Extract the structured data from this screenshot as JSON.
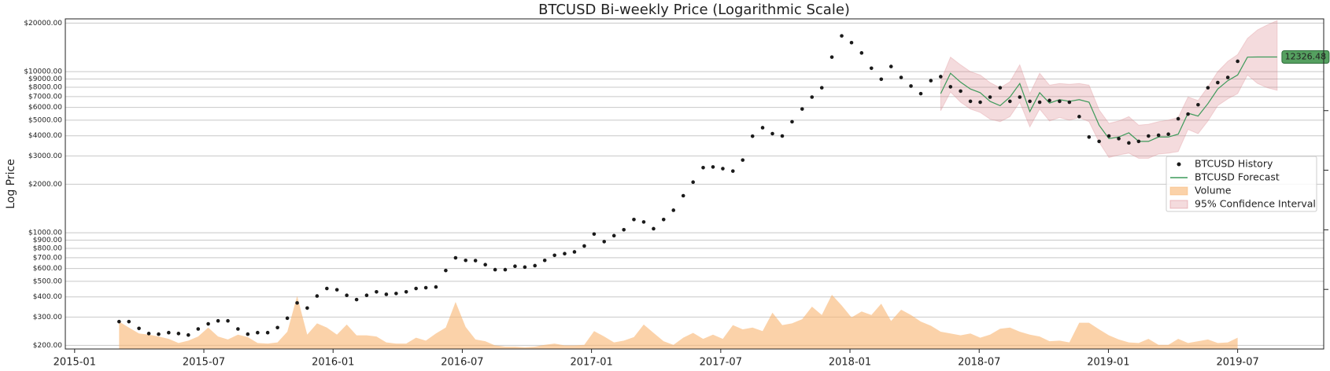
{
  "chart_data": {
    "type": "line",
    "title": "BTCUSD Bi-weekly Price (Logarithmic Scale)",
    "ylabel": "Log Price",
    "log_y": true,
    "grid": true,
    "legend": "center right",
    "xlim": [
      2014.964,
      2019.833
    ],
    "xticks": [
      {
        "value": 2015.0,
        "label": "2015-01"
      },
      {
        "value": 2015.5,
        "label": "2015-07"
      },
      {
        "value": 2016.0,
        "label": "2016-01"
      },
      {
        "value": 2016.5,
        "label": "2016-07"
      },
      {
        "value": 2017.0,
        "label": "2017-01"
      },
      {
        "value": 2017.5,
        "label": "2017-07"
      },
      {
        "value": 2018.0,
        "label": "2018-01"
      },
      {
        "value": 2018.5,
        "label": "2018-07"
      },
      {
        "value": 2019.0,
        "label": "2019-01"
      },
      {
        "value": 2019.5,
        "label": "2019-07"
      }
    ],
    "ylim": [
      190,
      21250
    ],
    "yticks": [
      {
        "value": 200,
        "label": "$200.00"
      },
      {
        "value": 300,
        "label": "$300.00"
      },
      {
        "value": 400,
        "label": "$400.00"
      },
      {
        "value": 500,
        "label": "$500.00"
      },
      {
        "value": 600,
        "label": "$600.00"
      },
      {
        "value": 700,
        "label": "$700.00"
      },
      {
        "value": 800,
        "label": "$800.00"
      },
      {
        "value": 900,
        "label": "$900.00"
      },
      {
        "value": 1000,
        "label": "$1000.00"
      },
      {
        "value": 2000,
        "label": "$2000.00"
      },
      {
        "value": 3000,
        "label": "$3000.00"
      },
      {
        "value": 4000,
        "label": "$4000.00"
      },
      {
        "value": 5000,
        "label": "$5000.00"
      },
      {
        "value": 6000,
        "label": "$6000.00"
      },
      {
        "value": 7000,
        "label": "$7000.00"
      },
      {
        "value": 8000,
        "label": "$8000.00"
      },
      {
        "value": 9000,
        "label": "$9000.00"
      },
      {
        "value": 10000,
        "label": "$10000.00"
      },
      {
        "value": 20000,
        "label": "$20000.00"
      }
    ],
    "y2lim": [
      0,
      5.54
    ],
    "y2ticks": [
      1,
      2,
      3,
      4,
      5
    ],
    "x": [
      2015.172,
      2015.21,
      2015.249,
      2015.287,
      2015.325,
      2015.364,
      2015.402,
      2015.44,
      2015.478,
      2015.517,
      2015.555,
      2015.593,
      2015.632,
      2015.67,
      2015.708,
      2015.747,
      2015.785,
      2015.823,
      2015.861,
      2015.9,
      2015.938,
      2015.976,
      2016.015,
      2016.053,
      2016.091,
      2016.13,
      2016.168,
      2016.206,
      2016.244,
      2016.283,
      2016.321,
      2016.359,
      2016.398,
      2016.436,
      2016.474,
      2016.513,
      2016.551,
      2016.589,
      2016.627,
      2016.666,
      2016.704,
      2016.742,
      2016.781,
      2016.819,
      2016.857,
      2016.896,
      2016.934,
      2016.972,
      2017.01,
      2017.049,
      2017.087,
      2017.125,
      2017.164,
      2017.202,
      2017.24,
      2017.279,
      2017.317,
      2017.355,
      2017.393,
      2017.432,
      2017.47,
      2017.508,
      2017.547,
      2017.585,
      2017.623,
      2017.662,
      2017.7,
      2017.738,
      2017.776,
      2017.815,
      2017.853,
      2017.891,
      2017.93,
      2017.968,
      2018.006,
      2018.045,
      2018.083,
      2018.121,
      2018.159,
      2018.198,
      2018.236,
      2018.274,
      2018.313,
      2018.351,
      2018.389,
      2018.428,
      2018.466,
      2018.504,
      2018.542,
      2018.581,
      2018.619,
      2018.657,
      2018.696,
      2018.734,
      2018.772,
      2018.811,
      2018.849,
      2018.887,
      2018.925,
      2018.964,
      2019.002,
      2019.04,
      2019.079,
      2019.117,
      2019.155,
      2019.194,
      2019.232,
      2019.27,
      2019.308,
      2019.347,
      2019.385,
      2019.423,
      2019.462,
      2019.5
    ],
    "series": [
      {
        "name": "BTCUSD History",
        "kind": "scatter",
        "color": "#1a1a1a",
        "values": [
          281,
          281,
          255,
          237,
          235,
          240,
          237,
          232,
          253,
          272,
          284,
          284,
          253,
          235,
          240,
          240,
          258,
          295,
          367,
          341,
          405,
          451,
          443,
          409,
          385,
          409,
          430,
          415,
          420,
          430,
          451,
          456,
          461,
          583,
          699,
          674,
          672,
          634,
          590,
          590,
          620,
          612,
          625,
          674,
          725,
          742,
          761,
          828,
          982,
          881,
          959,
          1044,
          1208,
          1167,
          1060,
          1208,
          1380,
          1698,
          2062,
          2535,
          2560,
          2500,
          2414,
          2826,
          3974,
          4487,
          4121,
          3985,
          4887,
          5862,
          6950,
          7943,
          12300,
          16670,
          15130,
          13060,
          10500,
          8970,
          10760,
          9200,
          8140,
          7300,
          8790,
          9310,
          8050,
          7570,
          6540,
          6460,
          6950,
          7940,
          6540,
          6950,
          6540,
          6460,
          6620,
          6540,
          6460,
          5260,
          3926,
          3690,
          3985,
          3840,
          3610,
          3690,
          3985,
          4030,
          4090,
          5100,
          5450,
          6230,
          7940,
          8550,
          9200,
          11590
        ]
      },
      {
        "name": "BTCUSD Forecast",
        "kind": "line",
        "color": "#3d9a5a",
        "x": [
          2018.351,
          2018.389,
          2018.428,
          2018.466,
          2018.504,
          2018.542,
          2018.581,
          2018.619,
          2018.657,
          2018.696,
          2018.734,
          2018.772,
          2018.811,
          2018.849,
          2018.887,
          2018.925,
          2018.964,
          2019.002,
          2019.04,
          2019.079,
          2019.117,
          2019.155,
          2019.194,
          2019.232,
          2019.27,
          2019.308,
          2019.347,
          2019.385,
          2019.423,
          2019.462,
          2019.5,
          2019.538,
          2019.577,
          2019.615,
          2019.653
        ],
        "values": [
          7300,
          9770,
          8600,
          7800,
          7400,
          6540,
          6150,
          6950,
          8430,
          5650,
          7400,
          6380,
          6700,
          6540,
          6700,
          6460,
          4650,
          3840,
          3930,
          4170,
          3690,
          3690,
          3930,
          3930,
          4090,
          5520,
          5300,
          6330,
          7800,
          8790,
          9530,
          12300,
          12326.48,
          12326.48,
          12326.48
        ]
      },
      {
        "name": "Volume",
        "kind": "area",
        "axis": "y2",
        "color": "#f8b46f",
        "values": [
          0.46,
          0.36,
          0.26,
          0.24,
          0.21,
          0.17,
          0.1,
          0.14,
          0.21,
          0.36,
          0.21,
          0.16,
          0.24,
          0.2,
          0.1,
          0.09,
          0.11,
          0.29,
          0.89,
          0.24,
          0.43,
          0.36,
          0.24,
          0.41,
          0.23,
          0.23,
          0.21,
          0.11,
          0.09,
          0.09,
          0.19,
          0.14,
          0.26,
          0.36,
          0.79,
          0.37,
          0.16,
          0.13,
          0.06,
          0.04,
          0.04,
          0.03,
          0.04,
          0.07,
          0.09,
          0.06,
          0.06,
          0.07,
          0.3,
          0.21,
          0.11,
          0.14,
          0.2,
          0.41,
          0.27,
          0.13,
          0.07,
          0.19,
          0.27,
          0.17,
          0.24,
          0.17,
          0.4,
          0.33,
          0.36,
          0.3,
          0.61,
          0.4,
          0.43,
          0.5,
          0.71,
          0.57,
          0.91,
          0.73,
          0.53,
          0.63,
          0.57,
          0.76,
          0.47,
          0.66,
          0.57,
          0.46,
          0.39,
          0.29,
          0.26,
          0.23,
          0.26,
          0.19,
          0.24,
          0.34,
          0.36,
          0.29,
          0.24,
          0.21,
          0.13,
          0.14,
          0.11,
          0.44,
          0.44,
          0.33,
          0.23,
          0.16,
          0.11,
          0.1,
          0.17,
          0.07,
          0.07,
          0.17,
          0.1,
          0.13,
          0.16,
          0.1,
          0.11,
          0.19
        ]
      },
      {
        "name": "95% Confidence Interval",
        "kind": "band",
        "color": "#d98890",
        "x": [
          2018.351,
          2018.389,
          2018.428,
          2018.466,
          2018.504,
          2018.542,
          2018.581,
          2018.619,
          2018.657,
          2018.696,
          2018.734,
          2018.772,
          2018.811,
          2018.849,
          2018.887,
          2018.925,
          2018.964,
          2019.002,
          2019.04,
          2019.079,
          2019.117,
          2019.155,
          2019.194,
          2019.232,
          2019.27,
          2019.308,
          2019.347,
          2019.385,
          2019.423,
          2019.462,
          2019.5,
          2019.538,
          2019.577,
          2019.615,
          2019.653
        ],
        "upper": [
          8750,
          12300,
          11020,
          10000,
          9530,
          8550,
          7940,
          8650,
          11020,
          7300,
          9770,
          8240,
          8440,
          8340,
          8440,
          8240,
          5790,
          4770,
          4940,
          5260,
          4650,
          4710,
          4890,
          5000,
          5190,
          6950,
          6620,
          8040,
          10000,
          11590,
          12760,
          16070,
          18150,
          19500,
          20750
        ],
        "lower": [
          5720,
          7480,
          6460,
          5860,
          5580,
          5070,
          4890,
          5260,
          6460,
          4540,
          5860,
          4940,
          5190,
          5000,
          5190,
          4890,
          3650,
          2930,
          3040,
          3120,
          2900,
          2900,
          3080,
          3120,
          3190,
          4380,
          4120,
          4940,
          6150,
          6780,
          7300,
          9530,
          8440,
          7940,
          7660
        ]
      }
    ]
  }
}
